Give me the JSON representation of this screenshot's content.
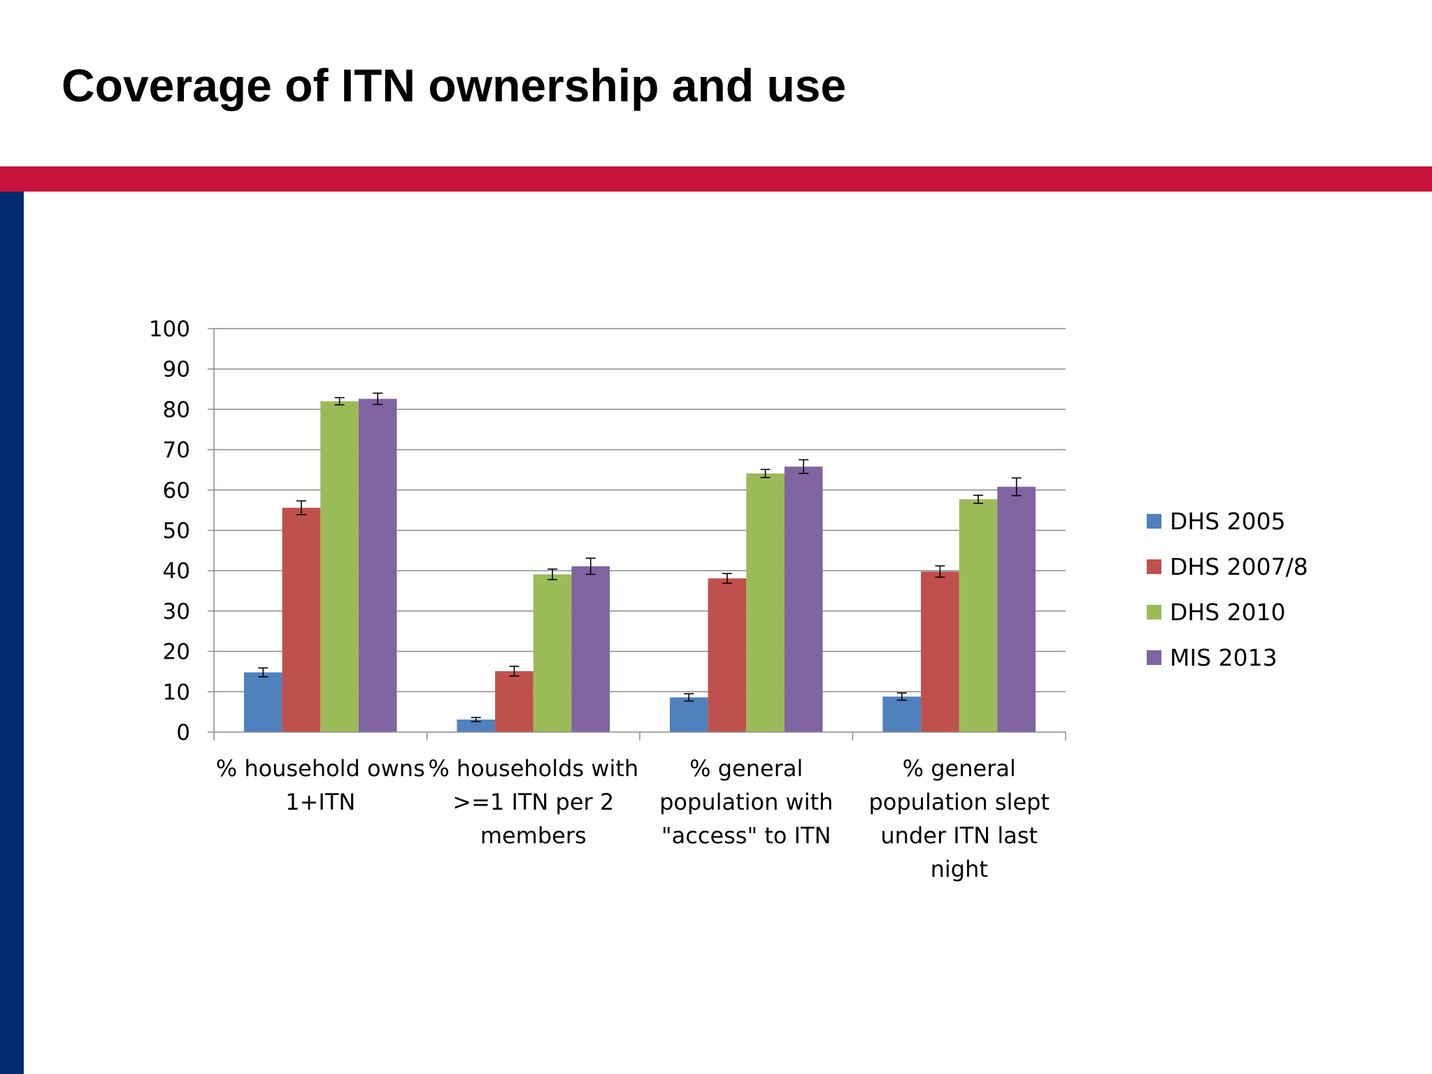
{
  "slide": {
    "title": "Coverage of ITN ownership and use"
  },
  "colors": {
    "header_bar": "#c8143c",
    "side_bar": "#002b6e",
    "gridline": "#8c8c8c",
    "axis": "#8c8c8c",
    "error_bar": "#000000"
  },
  "chart_data": {
    "type": "bar",
    "title": "",
    "xlabel": "",
    "ylabel": "",
    "ylim": [
      0,
      100
    ],
    "yticks": [
      0,
      10,
      20,
      30,
      40,
      50,
      60,
      70,
      80,
      90,
      100
    ],
    "grid": true,
    "legend_position": "right",
    "categories": [
      [
        "% household owns",
        "1+ITN"
      ],
      [
        "% households with",
        ">=1 ITN per 2",
        "members"
      ],
      [
        "% general",
        "population with",
        "\"access\" to ITN"
      ],
      [
        "% general",
        "population slept",
        "under ITN last",
        "night"
      ]
    ],
    "series": [
      {
        "name": "DHS 2005",
        "color": "#4f81bd",
        "values": [
          14.8,
          3.1,
          8.6,
          8.8
        ],
        "error": [
          1.1,
          0.5,
          0.9,
          0.9
        ]
      },
      {
        "name": "DHS 2007/8",
        "color": "#c0504d",
        "values": [
          55.6,
          15.1,
          38.1,
          39.8
        ],
        "error": [
          1.7,
          1.2,
          1.2,
          1.4
        ]
      },
      {
        "name": "DHS 2010",
        "color": "#9bbb59",
        "values": [
          82.0,
          39.1,
          64.1,
          57.7
        ],
        "error": [
          0.9,
          1.3,
          1.0,
          1.0
        ]
      },
      {
        "name": "MIS 2013",
        "color": "#8064a2",
        "values": [
          82.6,
          41.1,
          65.8,
          60.8
        ],
        "error": [
          1.4,
          2.0,
          1.7,
          2.2
        ]
      }
    ]
  }
}
